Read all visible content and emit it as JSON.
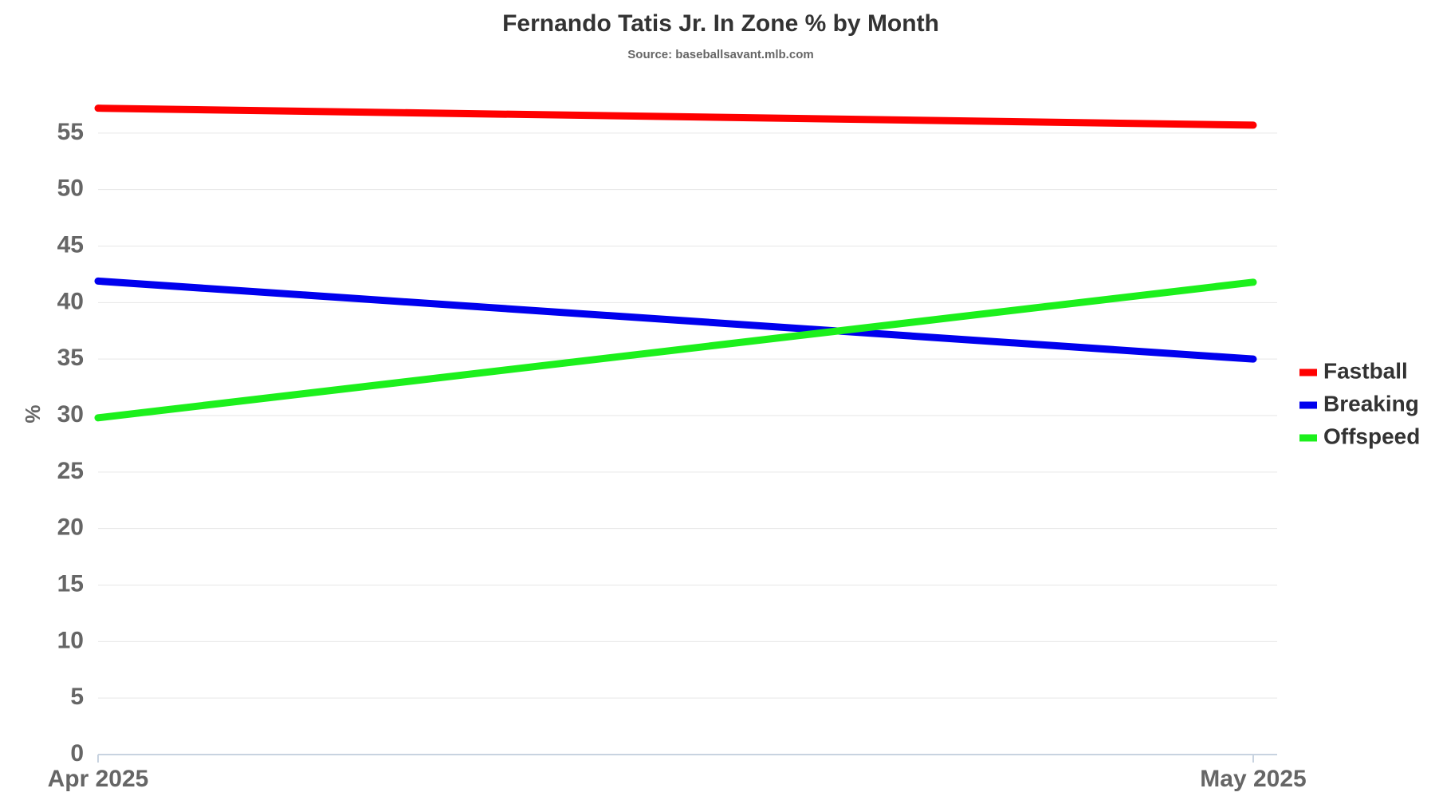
{
  "chart_data": {
    "type": "line",
    "title": "Fernando Tatis Jr. In Zone % by Month",
    "subtitle": "Source: baseballsavant.mlb.com",
    "y_label": "%",
    "categories": [
      "Apr 2025",
      "May 2025"
    ],
    "series": [
      {
        "name": "Fastball",
        "color": "#ff0000",
        "values": [
          57.2,
          55.7
        ]
      },
      {
        "name": "Breaking",
        "color": "#0000ee",
        "values": [
          41.9,
          35.0
        ]
      },
      {
        "name": "Offspeed",
        "color": "#1cf01c",
        "values": [
          29.8,
          41.8
        ]
      }
    ],
    "ylim": [
      0,
      60
    ],
    "yticks": [
      0,
      5,
      10,
      15,
      20,
      25,
      30,
      35,
      40,
      45,
      50,
      55
    ],
    "grid": true,
    "legend": "right"
  }
}
